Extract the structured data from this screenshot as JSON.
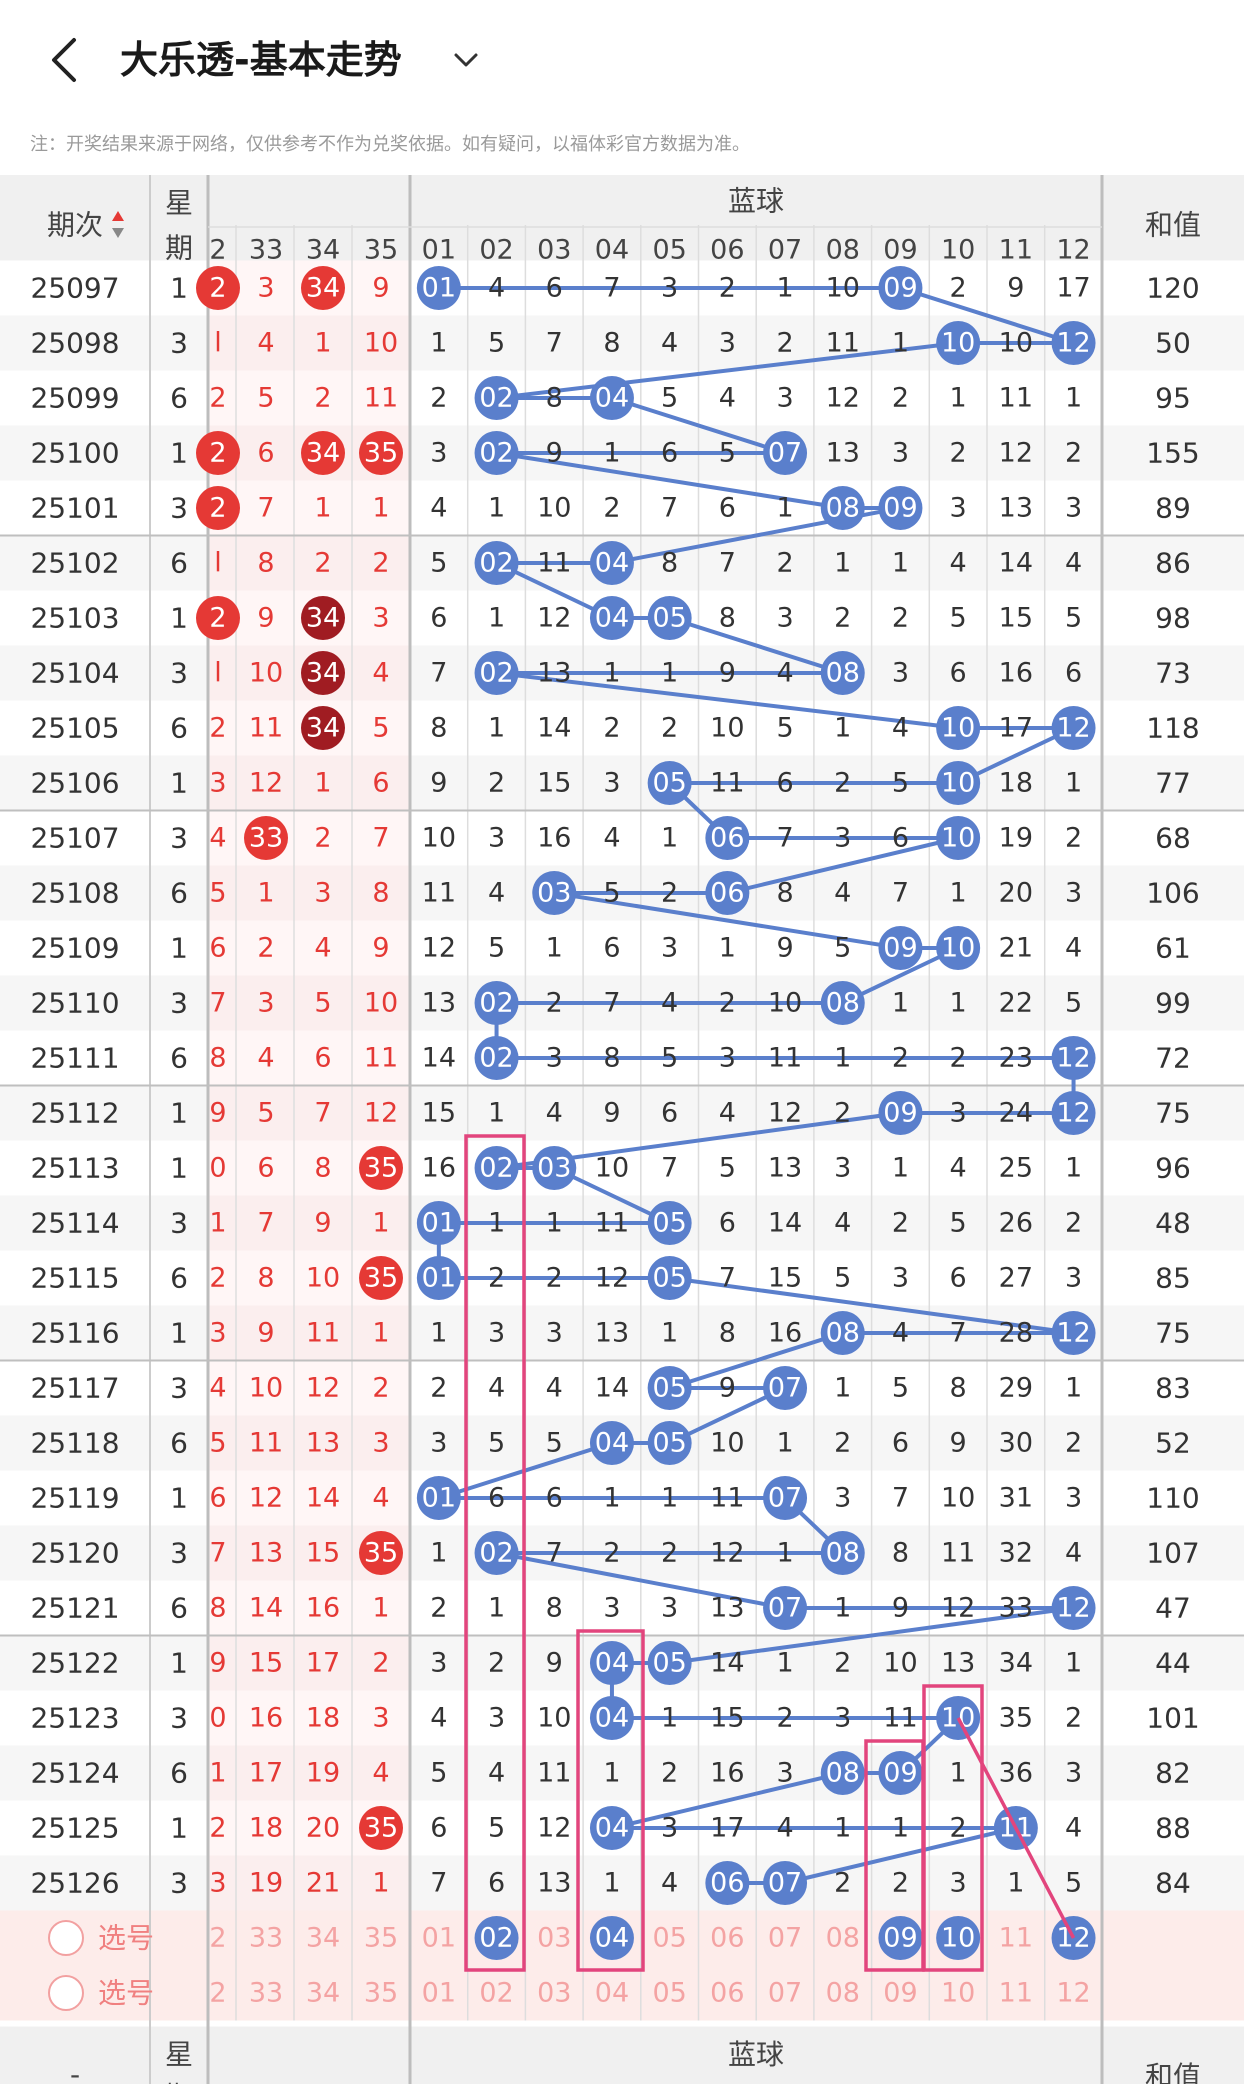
{
  "header": {
    "title": "大乐透-基本走势"
  },
  "notice": "注：开奖结果来源于网络，仅供参考不作为兑奖依据。如有疑问，以福体彩官方数据为准。",
  "table_header": {
    "period": "期次",
    "weekday": "星期",
    "blue_section": "蓝球",
    "sum": "和值",
    "red_cols": [
      "2",
      "33",
      "34",
      "35"
    ],
    "blue_cols": [
      "01",
      "02",
      "03",
      "04",
      "05",
      "06",
      "07",
      "08",
      "09",
      "10",
      "11",
      "12"
    ]
  },
  "footer": {
    "select_label": "选号",
    "dash": "-"
  },
  "colors": {
    "red": "#e53935",
    "dark_red": "#a01c22",
    "blue": "#5a7fcc",
    "pink": "#e2457d",
    "text": "#333333"
  },
  "rows": [
    {
      "period": "25097",
      "wd": "1",
      "r": [
        "2",
        "3",
        "34",
        "9"
      ],
      "rc": [
        1,
        0,
        1,
        0
      ],
      "b": [
        "01",
        "4",
        "6",
        "7",
        "3",
        "2",
        "1",
        "10",
        "09",
        "2",
        "9",
        "17"
      ],
      "sum": "120"
    },
    {
      "period": "25098",
      "wd": "3",
      "r": [
        "l",
        "4",
        "1",
        "10"
      ],
      "rc": [
        0,
        0,
        0,
        0
      ],
      "b": [
        "1",
        "5",
        "7",
        "8",
        "4",
        "3",
        "2",
        "11",
        "1",
        "10",
        "10",
        "12"
      ],
      "sum": "50"
    },
    {
      "period": "25099",
      "wd": "6",
      "r": [
        "2",
        "5",
        "2",
        "11"
      ],
      "rc": [
        0,
        0,
        0,
        0
      ],
      "b": [
        "2",
        "02",
        "8",
        "04",
        "5",
        "4",
        "3",
        "12",
        "2",
        "1",
        "11",
        "1"
      ],
      "sum": "95"
    },
    {
      "period": "25100",
      "wd": "1",
      "r": [
        "2",
        "6",
        "34",
        "35"
      ],
      "rc": [
        1,
        0,
        1,
        1
      ],
      "b": [
        "3",
        "02",
        "9",
        "1",
        "6",
        "5",
        "07",
        "13",
        "3",
        "2",
        "12",
        "2"
      ],
      "sum": "155"
    },
    {
      "period": "25101",
      "wd": "3",
      "r": [
        "2",
        "7",
        "1",
        "1"
      ],
      "rc": [
        1,
        0,
        0,
        0
      ],
      "b": [
        "4",
        "1",
        "10",
        "2",
        "7",
        "6",
        "1",
        "08",
        "09",
        "3",
        "13",
        "3"
      ],
      "sum": "89"
    },
    {
      "period": "25102",
      "wd": "6",
      "r": [
        "l",
        "8",
        "2",
        "2"
      ],
      "rc": [
        0,
        0,
        0,
        0
      ],
      "b": [
        "5",
        "02",
        "11",
        "04",
        "8",
        "7",
        "2",
        "1",
        "1",
        "4",
        "14",
        "4"
      ],
      "sum": "86"
    },
    {
      "period": "25103",
      "wd": "1",
      "r": [
        "2",
        "9",
        "34",
        "3"
      ],
      "rc": [
        1,
        0,
        2,
        0
      ],
      "b": [
        "6",
        "1",
        "12",
        "04",
        "05",
        "8",
        "3",
        "2",
        "2",
        "5",
        "15",
        "5"
      ],
      "sum": "98"
    },
    {
      "period": "25104",
      "wd": "3",
      "r": [
        "l",
        "10",
        "34",
        "4"
      ],
      "rc": [
        0,
        0,
        2,
        0
      ],
      "b": [
        "7",
        "02",
        "13",
        "1",
        "1",
        "9",
        "4",
        "08",
        "3",
        "6",
        "16",
        "6"
      ],
      "sum": "73"
    },
    {
      "period": "25105",
      "wd": "6",
      "r": [
        "2",
        "11",
        "34",
        "5"
      ],
      "rc": [
        0,
        0,
        2,
        0
      ],
      "b": [
        "8",
        "1",
        "14",
        "2",
        "2",
        "10",
        "5",
        "1",
        "4",
        "10",
        "17",
        "12"
      ],
      "sum": "118"
    },
    {
      "period": "25106",
      "wd": "1",
      "r": [
        "3",
        "12",
        "1",
        "6"
      ],
      "rc": [
        0,
        0,
        0,
        0
      ],
      "b": [
        "9",
        "2",
        "15",
        "3",
        "05",
        "11",
        "6",
        "2",
        "5",
        "10",
        "18",
        "1"
      ],
      "sum": "77"
    },
    {
      "period": "25107",
      "wd": "3",
      "r": [
        "4",
        "33",
        "2",
        "7"
      ],
      "rc": [
        0,
        1,
        0,
        0
      ],
      "b": [
        "10",
        "3",
        "16",
        "4",
        "1",
        "06",
        "7",
        "3",
        "6",
        "10",
        "19",
        "2"
      ],
      "sum": "68"
    },
    {
      "period": "25108",
      "wd": "6",
      "r": [
        "5",
        "1",
        "3",
        "8"
      ],
      "rc": [
        0,
        0,
        0,
        0
      ],
      "b": [
        "11",
        "4",
        "03",
        "5",
        "2",
        "06",
        "8",
        "4",
        "7",
        "1",
        "20",
        "3"
      ],
      "sum": "106"
    },
    {
      "period": "25109",
      "wd": "1",
      "r": [
        "6",
        "2",
        "4",
        "9"
      ],
      "rc": [
        0,
        0,
        0,
        0
      ],
      "b": [
        "12",
        "5",
        "1",
        "6",
        "3",
        "1",
        "9",
        "5",
        "09",
        "10",
        "21",
        "4"
      ],
      "sum": "61"
    },
    {
      "period": "25110",
      "wd": "3",
      "r": [
        "7",
        "3",
        "5",
        "10"
      ],
      "rc": [
        0,
        0,
        0,
        0
      ],
      "b": [
        "13",
        "02",
        "2",
        "7",
        "4",
        "2",
        "10",
        "08",
        "1",
        "1",
        "22",
        "5"
      ],
      "sum": "99"
    },
    {
      "period": "25111",
      "wd": "6",
      "r": [
        "8",
        "4",
        "6",
        "11"
      ],
      "rc": [
        0,
        0,
        0,
        0
      ],
      "b": [
        "14",
        "02",
        "3",
        "8",
        "5",
        "3",
        "11",
        "1",
        "2",
        "2",
        "23",
        "12"
      ],
      "sum": "72"
    },
    {
      "period": "25112",
      "wd": "1",
      "r": [
        "9",
        "5",
        "7",
        "12"
      ],
      "rc": [
        0,
        0,
        0,
        0
      ],
      "b": [
        "15",
        "1",
        "4",
        "9",
        "6",
        "4",
        "12",
        "2",
        "09",
        "3",
        "24",
        "12"
      ],
      "sum": "75"
    },
    {
      "period": "25113",
      "wd": "1",
      "r": [
        "0",
        "6",
        "8",
        "35"
      ],
      "rc": [
        0,
        0,
        0,
        1
      ],
      "b": [
        "16",
        "02",
        "03",
        "10",
        "7",
        "5",
        "13",
        "3",
        "1",
        "4",
        "25",
        "1"
      ],
      "sum": "96"
    },
    {
      "period": "25114",
      "wd": "3",
      "r": [
        "1",
        "7",
        "9",
        "1"
      ],
      "rc": [
        0,
        0,
        0,
        0
      ],
      "b": [
        "01",
        "1",
        "1",
        "11",
        "05",
        "6",
        "14",
        "4",
        "2",
        "5",
        "26",
        "2"
      ],
      "sum": "48"
    },
    {
      "period": "25115",
      "wd": "6",
      "r": [
        "2",
        "8",
        "10",
        "35"
      ],
      "rc": [
        0,
        0,
        0,
        1
      ],
      "b": [
        "01",
        "2",
        "2",
        "12",
        "05",
        "7",
        "15",
        "5",
        "3",
        "6",
        "27",
        "3"
      ],
      "sum": "85"
    },
    {
      "period": "25116",
      "wd": "1",
      "r": [
        "3",
        "9",
        "11",
        "1"
      ],
      "rc": [
        0,
        0,
        0,
        0
      ],
      "b": [
        "1",
        "3",
        "3",
        "13",
        "1",
        "8",
        "16",
        "08",
        "4",
        "7",
        "28",
        "12"
      ],
      "sum": "75"
    },
    {
      "period": "25117",
      "wd": "3",
      "r": [
        "4",
        "10",
        "12",
        "2"
      ],
      "rc": [
        0,
        0,
        0,
        0
      ],
      "b": [
        "2",
        "4",
        "4",
        "14",
        "05",
        "9",
        "07",
        "1",
        "5",
        "8",
        "29",
        "1"
      ],
      "sum": "83"
    },
    {
      "period": "25118",
      "wd": "6",
      "r": [
        "5",
        "11",
        "13",
        "3"
      ],
      "rc": [
        0,
        0,
        0,
        0
      ],
      "b": [
        "3",
        "5",
        "5",
        "04",
        "05",
        "10",
        "1",
        "2",
        "6",
        "9",
        "30",
        "2"
      ],
      "sum": "52"
    },
    {
      "period": "25119",
      "wd": "1",
      "r": [
        "6",
        "12",
        "14",
        "4"
      ],
      "rc": [
        0,
        0,
        0,
        0
      ],
      "b": [
        "01",
        "6",
        "6",
        "1",
        "1",
        "11",
        "07",
        "3",
        "7",
        "10",
        "31",
        "3"
      ],
      "sum": "110"
    },
    {
      "period": "25120",
      "wd": "3",
      "r": [
        "7",
        "13",
        "15",
        "35"
      ],
      "rc": [
        0,
        0,
        0,
        1
      ],
      "b": [
        "1",
        "02",
        "7",
        "2",
        "2",
        "12",
        "1",
        "08",
        "8",
        "11",
        "32",
        "4"
      ],
      "sum": "107"
    },
    {
      "period": "25121",
      "wd": "6",
      "r": [
        "8",
        "14",
        "16",
        "1"
      ],
      "rc": [
        0,
        0,
        0,
        0
      ],
      "b": [
        "2",
        "1",
        "8",
        "3",
        "3",
        "13",
        "07",
        "1",
        "9",
        "12",
        "33",
        "12"
      ],
      "sum": "47"
    },
    {
      "period": "25122",
      "wd": "1",
      "r": [
        "9",
        "15",
        "17",
        "2"
      ],
      "rc": [
        0,
        0,
        0,
        0
      ],
      "b": [
        "3",
        "2",
        "9",
        "04",
        "05",
        "14",
        "1",
        "2",
        "10",
        "13",
        "34",
        "1"
      ],
      "sum": "44"
    },
    {
      "period": "25123",
      "wd": "3",
      "r": [
        "0",
        "16",
        "18",
        "3"
      ],
      "rc": [
        0,
        0,
        0,
        0
      ],
      "b": [
        "4",
        "3",
        "10",
        "04",
        "1",
        "15",
        "2",
        "3",
        "11",
        "10",
        "35",
        "2"
      ],
      "sum": "101"
    },
    {
      "period": "25124",
      "wd": "6",
      "r": [
        "1",
        "17",
        "19",
        "4"
      ],
      "rc": [
        0,
        0,
        0,
        0
      ],
      "b": [
        "5",
        "4",
        "11",
        "1",
        "2",
        "16",
        "3",
        "08",
        "09",
        "1",
        "36",
        "3"
      ],
      "sum": "82"
    },
    {
      "period": "25125",
      "wd": "1",
      "r": [
        "2",
        "18",
        "20",
        "35"
      ],
      "rc": [
        0,
        0,
        0,
        1
      ],
      "b": [
        "6",
        "5",
        "12",
        "04",
        "3",
        "17",
        "4",
        "1",
        "1",
        "2",
        "11",
        "4"
      ],
      "sum": "88"
    },
    {
      "period": "25126",
      "wd": "3",
      "r": [
        "3",
        "19",
        "21",
        "1"
      ],
      "rc": [
        0,
        0,
        0,
        0
      ],
      "b": [
        "7",
        "6",
        "13",
        "1",
        "4",
        "06",
        "07",
        "2",
        "2",
        "3",
        "1",
        "5"
      ],
      "sum": "84"
    }
  ],
  "blue_hits": [
    [
      1,
      9
    ],
    [
      10,
      12
    ],
    [
      2,
      4
    ],
    [
      2,
      7
    ],
    [
      8,
      9
    ],
    [
      2,
      4
    ],
    [
      4,
      5
    ],
    [
      2,
      8
    ],
    [
      10,
      12
    ],
    [
      5,
      10
    ],
    [
      6,
      10
    ],
    [
      3,
      6
    ],
    [
      9,
      10
    ],
    [
      2,
      8
    ],
    [
      2,
      12
    ],
    [
      9,
      12
    ],
    [
      2,
      3
    ],
    [
      1,
      5
    ],
    [
      1,
      5
    ],
    [
      8,
      12
    ],
    [
      5,
      7
    ],
    [
      4,
      5
    ],
    [
      1,
      7
    ],
    [
      2,
      8
    ],
    [
      7,
      12
    ],
    [
      4,
      5
    ],
    [
      4,
      10
    ],
    [
      8,
      9
    ],
    [
      4,
      11
    ],
    [
      6,
      7
    ]
  ],
  "select_rows": [
    {
      "red": [
        "2",
        "33",
        "34",
        "35"
      ],
      "blue": [
        "01",
        "02",
        "03",
        "04",
        "05",
        "06",
        "07",
        "08",
        "09",
        "10",
        "11",
        "12"
      ],
      "selected": [
        2,
        4,
        9,
        10,
        12
      ]
    },
    {
      "red": [
        "2",
        "33",
        "34",
        "35"
      ],
      "blue": [
        "01",
        "02",
        "03",
        "04",
        "05",
        "06",
        "07",
        "08",
        "09",
        "10",
        "11",
        "12"
      ],
      "selected": []
    }
  ]
}
